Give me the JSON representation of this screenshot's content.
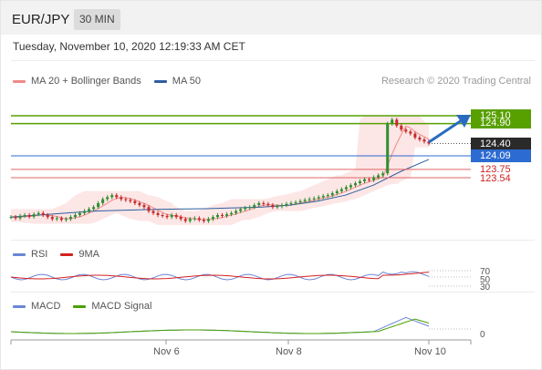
{
  "header": {
    "pair": "EUR/JPY",
    "timeframe": "30 MIN"
  },
  "timestamp": "Tuesday, November 10, 2020 12:19:33 AM CET",
  "credit": "Research © 2020 Trading Central",
  "legend_main": [
    {
      "label": "MA 20 + Bollinger Bands",
      "color": "#f08a8a"
    },
    {
      "label": "MA 50",
      "color": "#2e5f9e"
    }
  ],
  "legend_rsi": [
    {
      "label": "RSI",
      "color": "#6b86d6"
    },
    {
      "label": "9MA",
      "color": "#d42020"
    }
  ],
  "legend_macd": [
    {
      "label": "MACD",
      "color": "#6b86d6"
    },
    {
      "label": "MACD Signal",
      "color": "#4aa000"
    }
  ],
  "levels": {
    "res2": "125.10",
    "res1": "124.90",
    "last": "124.40",
    "pivot": "124.09",
    "sup1": "123.75",
    "sup2": "123.54"
  },
  "rsi_labels": {
    "l70": "70",
    "l50": "50",
    "l30": "30"
  },
  "macd_label": "0",
  "x_labels": [
    "Nov 6",
    "Nov 8",
    "Nov 10"
  ],
  "colors": {
    "resistance": "#58a000",
    "support": "#e06666",
    "pivot": "#2c6bd1",
    "candle_up": "#2f8f2f",
    "candle_down": "#c62828",
    "arrow": "#2a6bbf"
  },
  "chart_data": {
    "type": "candlestick",
    "title": "EUR/JPY 30 MIN",
    "ylim": [
      122.0,
      125.6
    ],
    "x_ticks": [
      "Nov 6",
      "Nov 8",
      "Nov 10"
    ],
    "horizontal_levels": {
      "resistance": [
        125.1,
        124.9
      ],
      "last": 124.4,
      "pivot": 124.09,
      "support": [
        123.75,
        123.54
      ]
    },
    "close_approx": [
      122.55,
      122.52,
      122.58,
      122.6,
      122.56,
      122.62,
      122.65,
      122.6,
      122.55,
      122.5,
      122.52,
      122.48,
      122.5,
      122.55,
      122.6,
      122.65,
      122.7,
      122.75,
      122.8,
      122.9,
      123.0,
      123.05,
      123.1,
      123.05,
      123.0,
      122.98,
      122.95,
      122.9,
      122.85,
      122.8,
      122.7,
      122.65,
      122.6,
      122.58,
      122.55,
      122.6,
      122.55,
      122.5,
      122.45,
      122.5,
      122.52,
      122.48,
      122.45,
      122.5,
      122.55,
      122.6,
      122.58,
      122.62,
      122.65,
      122.7,
      122.75,
      122.78,
      122.8,
      122.85,
      122.9,
      122.88,
      122.85,
      122.8,
      122.82,
      122.85,
      122.88,
      122.9,
      122.92,
      122.95,
      122.98,
      123.0,
      123.02,
      123.05,
      123.08,
      123.1,
      123.15,
      123.2,
      123.25,
      123.3,
      123.35,
      123.4,
      123.45,
      123.5,
      123.48,
      123.55,
      123.6,
      123.65,
      124.9,
      125.0,
      124.85,
      124.75,
      124.7,
      124.65,
      124.55,
      124.5,
      124.45,
      124.4
    ],
    "ma50_approx": [
      122.55,
      122.6,
      122.65,
      122.7,
      122.72,
      122.74,
      122.75,
      122.76,
      122.78,
      122.8,
      122.85,
      122.95,
      123.1,
      123.35,
      123.7,
      124.0
    ],
    "rsi_levels": [
      70,
      50,
      30
    ],
    "macd_zero": 0
  }
}
